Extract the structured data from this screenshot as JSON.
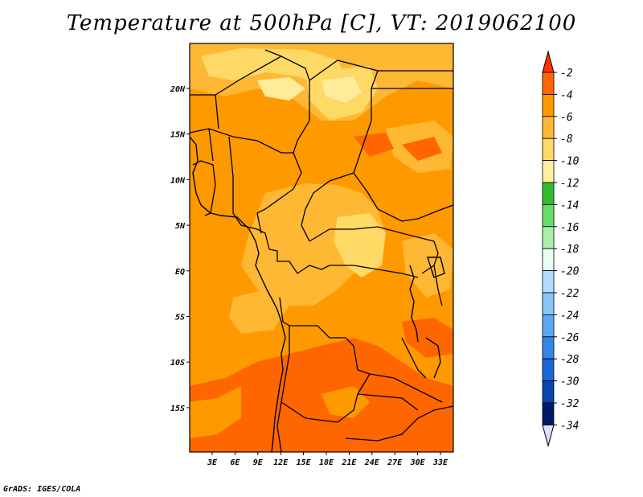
{
  "title": "Temperature at 500hPa [C], VT: 2019062100",
  "credit": "GrADS: IGES/COLA",
  "map": {
    "lat_labels": [
      "20N",
      "15N",
      "10N",
      "5N",
      "EQ",
      "5S",
      "10S",
      "15S"
    ],
    "lon_labels": [
      "3E",
      "6E",
      "9E",
      "12E",
      "15E",
      "18E",
      "21E",
      "24E",
      "27E",
      "30E",
      "33E"
    ]
  },
  "legend": {
    "labels": [
      "-2",
      "-4",
      "-6",
      "-8",
      "-10",
      "-12",
      "-14",
      "-16",
      "-18",
      "-20",
      "-22",
      "-24",
      "-26",
      "-28",
      "-30",
      "-32",
      "-34"
    ],
    "colors": [
      "#ff3300",
      "#ff6600",
      "#ff9900",
      "#ffb833",
      "#ffd966",
      "#fff0a0",
      "#33bb33",
      "#66dd66",
      "#aaeeaa",
      "#e6fff0",
      "#b3dcff",
      "#88c4f8",
      "#5aa8f0",
      "#3388e6",
      "#1a66d6",
      "#0a44b0",
      "#001a66",
      "#dde0ff"
    ]
  },
  "colors": {
    "t_4_6": "#ff9900",
    "t_6_8": "#ffb833",
    "t_8_10": "#ffd966",
    "t_10_12": "#ffeb99",
    "t_2_4": "#ff6600"
  }
}
